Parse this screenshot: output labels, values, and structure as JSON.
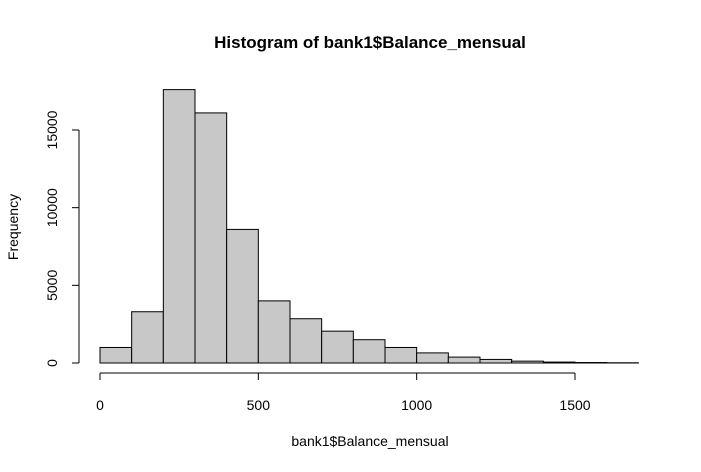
{
  "chart_data": {
    "type": "bar",
    "title": "Histogram of bank1$Balance_mensual",
    "xlabel": "bank1$Balance_mensual",
    "ylabel": "Frequency",
    "bin_width": 100,
    "bins": [
      {
        "start": 0,
        "end": 100,
        "count": 1000
      },
      {
        "start": 100,
        "end": 200,
        "count": 3300
      },
      {
        "start": 200,
        "end": 300,
        "count": 17600
      },
      {
        "start": 300,
        "end": 400,
        "count": 16100
      },
      {
        "start": 400,
        "end": 500,
        "count": 8600
      },
      {
        "start": 500,
        "end": 600,
        "count": 4000
      },
      {
        "start": 600,
        "end": 700,
        "count": 2850
      },
      {
        "start": 700,
        "end": 800,
        "count": 2050
      },
      {
        "start": 800,
        "end": 900,
        "count": 1500
      },
      {
        "start": 900,
        "end": 1000,
        "count": 1000
      },
      {
        "start": 1000,
        "end": 1100,
        "count": 650
      },
      {
        "start": 1100,
        "end": 1200,
        "count": 380
      },
      {
        "start": 1200,
        "end": 1300,
        "count": 230
      },
      {
        "start": 1300,
        "end": 1400,
        "count": 120
      },
      {
        "start": 1400,
        "end": 1500,
        "count": 60
      },
      {
        "start": 1500,
        "end": 1600,
        "count": 30
      },
      {
        "start": 1600,
        "end": 1700,
        "count": 15
      }
    ],
    "xlim": [
      0,
      1700
    ],
    "ylim": [
      0,
      17600
    ],
    "x_ticks": [
      0,
      500,
      1000,
      1500
    ],
    "x_tick_labels": [
      "0",
      "500",
      "1000",
      "1500"
    ],
    "y_ticks": [
      0,
      5000,
      10000,
      15000
    ],
    "y_tick_labels": [
      "0",
      "5000",
      "10000",
      "15000"
    ],
    "grid": false,
    "bar_color": "#c8c8c8",
    "edge_color": "#000000"
  }
}
